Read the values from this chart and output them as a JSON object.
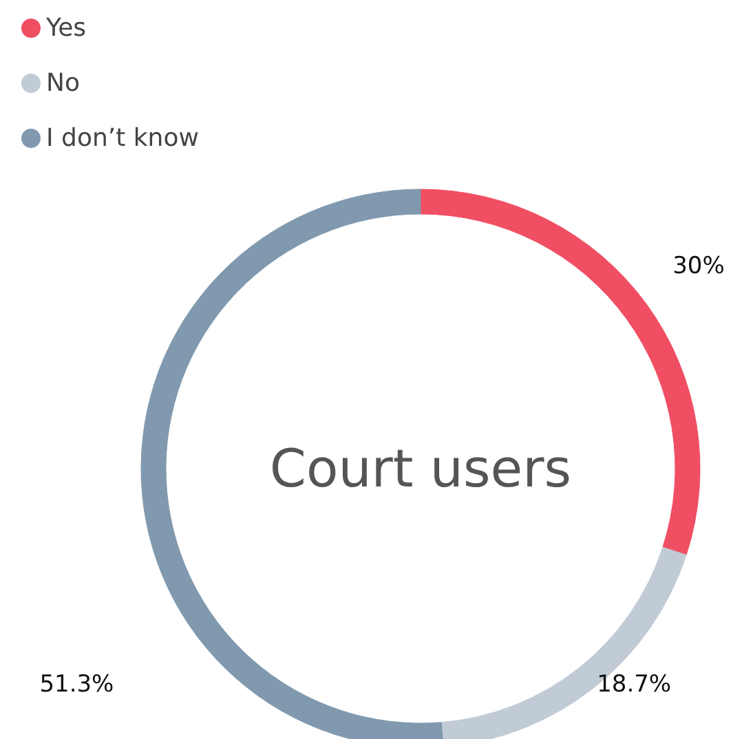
{
  "chart_data": {
    "type": "donut",
    "title": "Court users",
    "categories": [
      "Yes",
      "No",
      "I don’t know"
    ],
    "values": [
      30,
      18.7,
      51.3
    ],
    "colors": [
      "#f04e63",
      "#c1cbd5",
      "#8099ae"
    ],
    "value_labels": [
      "30%",
      "18.7%",
      "51.3%"
    ],
    "legend": "top left"
  }
}
